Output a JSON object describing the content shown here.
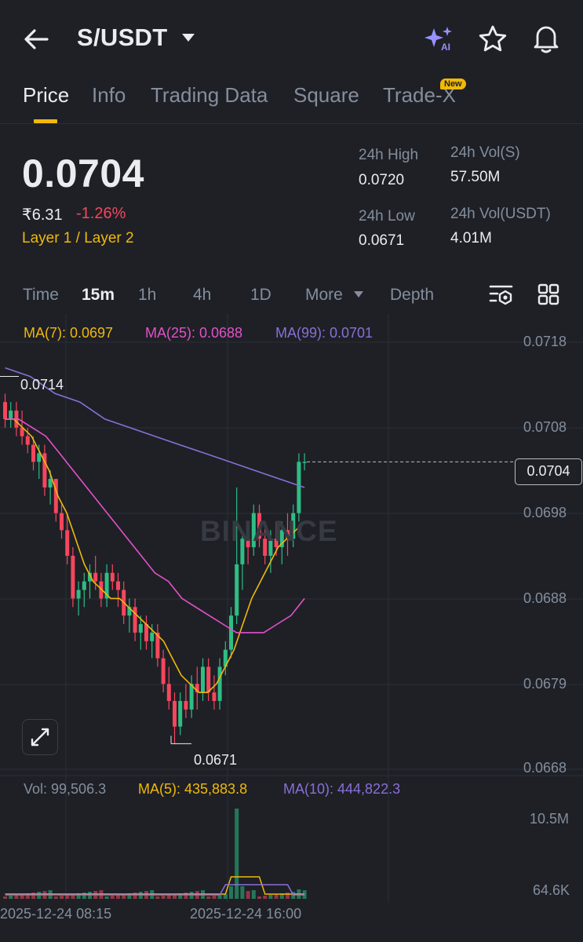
{
  "header": {
    "pair": "S/USDT",
    "icons": [
      "back-arrow-icon",
      "dropdown-caret-icon",
      "ai-sparkle-icon",
      "star-icon",
      "bell-icon"
    ],
    "ai_label": "AI"
  },
  "tabs": [
    {
      "label": "Price",
      "active": true
    },
    {
      "label": "Info"
    },
    {
      "label": "Trading Data"
    },
    {
      "label": "Square"
    },
    {
      "label": "Trade-X",
      "badge": "New"
    }
  ],
  "ticker": {
    "last_price": "0.0704",
    "inr_price": "₹6.31",
    "change_pct": "-1.26%",
    "category": "Layer 1 / Layer 2",
    "high_label": "24h High",
    "high_value": "0.0720",
    "low_label": "24h Low",
    "low_value": "0.0671",
    "vol_s_label": "24h Vol(S)",
    "vol_s_value": "57.50M",
    "vol_usdt_label": "24h Vol(USDT)",
    "vol_usdt_value": "4.01M"
  },
  "timeframes": [
    {
      "label": "Time"
    },
    {
      "label": "15m",
      "active": true
    },
    {
      "label": "1h"
    },
    {
      "label": "4h"
    },
    {
      "label": "1D"
    },
    {
      "label": "More"
    },
    {
      "label": "Depth"
    }
  ],
  "ma_legend": {
    "ma7": "MA(7): 0.0697",
    "ma25": "MA(25): 0.0688",
    "ma99": "MA(99): 0.0701"
  },
  "price_axis": [
    "0.0718",
    "0.0708",
    "0.0698",
    "0.0688",
    "0.0679",
    "0.0668"
  ],
  "current_price_tag": "0.0704",
  "high_marker": "0.0714",
  "low_marker": "0.0671",
  "watermark": "BINANCE",
  "volume": {
    "vol": "Vol: 99,506.3",
    "ma5": "MA(5): 435,883.8",
    "ma10": "MA(10): 444,822.3",
    "axis_top": "10.5M",
    "axis_bottom": "64.6K"
  },
  "dates": [
    "2025-12-24 08:15",
    "2025-12-24 16:00"
  ],
  "colors": {
    "bg": "#1e2026",
    "up": "#2ebd85",
    "down": "#f6465d",
    "accent": "#f0b90b",
    "ma7": "#f0b90b",
    "ma25": "#e351c8",
    "ma99": "#8a6fd6",
    "muted": "#848e9c"
  },
  "chart_data": {
    "type": "candlestick",
    "interval": "15m",
    "ylim": [
      0.0667,
      0.072
    ],
    "last_price": 0.0704,
    "high_marker": 0.0714,
    "low_marker": 0.0671,
    "ohlc": [
      [
        0.0711,
        0.0712,
        0.0708,
        0.0709
      ],
      [
        0.0709,
        0.0711,
        0.0708,
        0.071
      ],
      [
        0.071,
        0.0711,
        0.0707,
        0.0708
      ],
      [
        0.0708,
        0.071,
        0.0706,
        0.0707
      ],
      [
        0.0707,
        0.0708,
        0.0705,
        0.0706
      ],
      [
        0.0706,
        0.0707,
        0.0703,
        0.0704
      ],
      [
        0.0704,
        0.0706,
        0.0702,
        0.0705
      ],
      [
        0.0705,
        0.0706,
        0.07,
        0.0701
      ],
      [
        0.0701,
        0.0703,
        0.0699,
        0.0702
      ],
      [
        0.0702,
        0.0702,
        0.0697,
        0.0698
      ],
      [
        0.0698,
        0.0699,
        0.0695,
        0.0696
      ],
      [
        0.0696,
        0.0698,
        0.0692,
        0.0693
      ],
      [
        0.0693,
        0.0694,
        0.0687,
        0.0688
      ],
      [
        0.0688,
        0.069,
        0.0686,
        0.0689
      ],
      [
        0.0689,
        0.0691,
        0.0687,
        0.069
      ],
      [
        0.069,
        0.0692,
        0.0688,
        0.0691
      ],
      [
        0.0691,
        0.0693,
        0.0689,
        0.069
      ],
      [
        0.069,
        0.0691,
        0.0687,
        0.0688
      ],
      [
        0.0688,
        0.0692,
        0.0687,
        0.0691
      ],
      [
        0.0691,
        0.0692,
        0.0689,
        0.069
      ],
      [
        0.069,
        0.0691,
        0.0687,
        0.0689
      ],
      [
        0.0689,
        0.069,
        0.0685,
        0.0686
      ],
      [
        0.0686,
        0.0688,
        0.0684,
        0.0687
      ],
      [
        0.0687,
        0.0688,
        0.0683,
        0.0684
      ],
      [
        0.0684,
        0.0686,
        0.0682,
        0.0685
      ],
      [
        0.0685,
        0.0686,
        0.0682,
        0.0683
      ],
      [
        0.0683,
        0.0685,
        0.0681,
        0.0684
      ],
      [
        0.0684,
        0.0685,
        0.068,
        0.0681
      ],
      [
        0.0681,
        0.0682,
        0.0677,
        0.0678
      ],
      [
        0.0678,
        0.068,
        0.0675,
        0.0676
      ],
      [
        0.0676,
        0.0677,
        0.0671,
        0.0673
      ],
      [
        0.0673,
        0.0677,
        0.0672,
        0.0676
      ],
      [
        0.0676,
        0.0678,
        0.0674,
        0.0675
      ],
      [
        0.0675,
        0.0679,
        0.0674,
        0.0678
      ],
      [
        0.0678,
        0.068,
        0.0675,
        0.0677
      ],
      [
        0.0677,
        0.0681,
        0.0676,
        0.068
      ],
      [
        0.068,
        0.0681,
        0.0676,
        0.0677
      ],
      [
        0.0677,
        0.0679,
        0.0675,
        0.0676
      ],
      [
        0.0676,
        0.0681,
        0.0675,
        0.068
      ],
      [
        0.068,
        0.0683,
        0.0679,
        0.0682
      ],
      [
        0.0682,
        0.0687,
        0.0681,
        0.0686
      ],
      [
        0.0686,
        0.0701,
        0.0685,
        0.0692
      ],
      [
        0.0692,
        0.0696,
        0.0689,
        0.0695
      ],
      [
        0.0695,
        0.0697,
        0.0692,
        0.0694
      ],
      [
        0.0694,
        0.0699,
        0.0693,
        0.0698
      ],
      [
        0.0698,
        0.0699,
        0.0694,
        0.0695
      ],
      [
        0.0695,
        0.0697,
        0.0692,
        0.0693
      ],
      [
        0.0693,
        0.0696,
        0.0691,
        0.0695
      ],
      [
        0.0695,
        0.0697,
        0.0693,
        0.0694
      ],
      [
        0.0694,
        0.0697,
        0.0692,
        0.0696
      ],
      [
        0.0696,
        0.0698,
        0.0693,
        0.0695
      ],
      [
        0.0695,
        0.0699,
        0.0694,
        0.0698
      ],
      [
        0.0698,
        0.0705,
        0.0697,
        0.0704
      ],
      [
        0.0704,
        0.0705,
        0.0703,
        0.0704
      ]
    ],
    "ma7": [
      0.0709,
      0.0709,
      0.0708,
      0.0707,
      0.0705,
      0.0703,
      0.07,
      0.0698,
      0.0695,
      0.0692,
      0.069,
      0.0689,
      0.0688,
      0.0688,
      0.0687,
      0.0686,
      0.0685,
      0.0684,
      0.0683,
      0.0681,
      0.0679,
      0.0678,
      0.0677,
      0.0677,
      0.0678,
      0.068,
      0.0682,
      0.0685,
      0.0688,
      0.069,
      0.0692,
      0.0694,
      0.0695,
      0.0696,
      0.0697
    ],
    "ma25": [
      0.0709,
      0.0709,
      0.0708,
      0.0707,
      0.0705,
      0.0703,
      0.0701,
      0.0699,
      0.0697,
      0.0695,
      0.0693,
      0.0691,
      0.069,
      0.0688,
      0.0687,
      0.0686,
      0.0685,
      0.0684,
      0.0684,
      0.0684,
      0.0685,
      0.0686,
      0.0688
    ],
    "ma99": [
      0.0715,
      0.0714,
      0.0712,
      0.0711,
      0.0709,
      0.0708,
      0.0707,
      0.0706,
      0.0705,
      0.0704,
      0.0703,
      0.0702,
      0.0701
    ]
  }
}
